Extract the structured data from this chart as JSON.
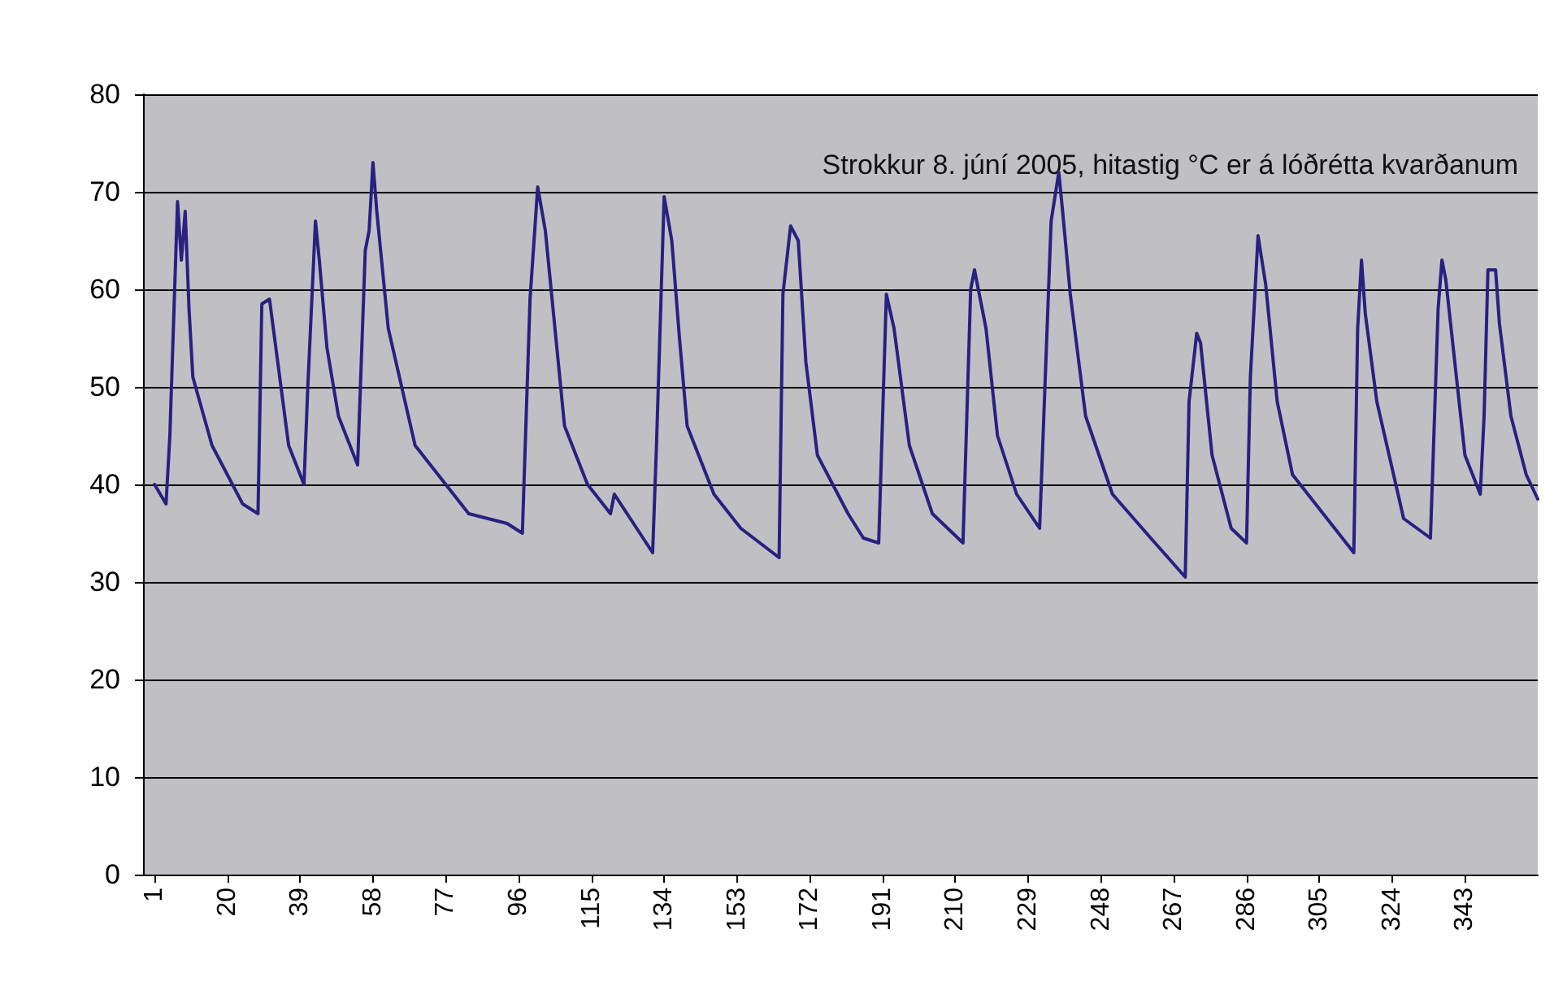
{
  "chart_data": {
    "type": "line",
    "annotations": [
      "Strokkur 8. júní 2005, hitastig °C er á lóðrétta kvarðanum"
    ],
    "x": [
      1,
      4,
      5,
      7,
      8,
      9,
      10,
      11,
      16,
      24,
      28,
      29,
      31,
      36,
      40,
      41,
      43,
      44,
      46,
      49,
      54,
      56,
      57,
      58,
      59,
      62,
      69,
      83,
      93,
      97,
      99,
      101,
      103,
      106,
      108,
      114,
      120,
      121,
      131,
      132,
      134,
      136,
      138,
      140,
      147,
      154,
      164,
      165,
      167,
      169,
      171,
      174,
      182,
      186,
      190,
      192,
      194,
      198,
      204,
      212,
      214,
      215,
      218,
      221,
      226,
      232,
      235,
      237,
      238,
      240,
      244,
      251,
      261,
      270,
      271,
      273,
      274,
      277,
      282,
      286,
      287,
      289,
      291,
      294,
      298,
      307,
      314,
      315,
      316,
      317,
      320,
      327,
      334,
      336,
      337,
      338,
      343,
      347,
      348,
      349,
      351,
      352,
      355,
      359,
      362
    ],
    "series": [
      {
        "color": "#2a2080",
        "values": [
          40,
          38,
          45,
          69,
          63,
          68,
          58,
          51,
          44,
          38,
          37,
          58.5,
          59,
          44,
          40,
          50,
          67,
          63,
          54,
          47,
          42,
          64,
          66,
          73,
          68,
          56,
          44,
          37,
          36,
          35,
          59,
          70.5,
          66,
          54,
          46,
          40,
          37,
          39,
          33,
          44,
          69.5,
          65,
          55,
          46,
          39,
          35.5,
          32.5,
          59.5,
          66.5,
          65,
          52.5,
          43,
          37,
          34.5,
          34,
          59.5,
          56,
          44,
          37,
          34,
          60,
          62,
          56,
          45,
          39,
          35.5,
          67,
          72,
          68,
          59.5,
          47,
          39,
          34.5,
          30.5,
          48.5,
          55.5,
          54.5,
          43,
          35.5,
          34,
          51,
          65.5,
          60.5,
          48.5,
          41,
          36.5,
          33,
          56,
          63,
          57.5,
          48.5,
          36.5,
          34.5,
          58,
          63,
          61,
          43,
          39,
          47,
          62,
          62,
          56.5,
          47,
          41,
          38.5
        ]
      }
    ],
    "ylim": [
      0,
      80
    ],
    "yticks": [
      0,
      10,
      20,
      30,
      40,
      50,
      60,
      70,
      80
    ],
    "xlim": [
      -2,
      362
    ],
    "xticks": [
      1,
      20,
      39,
      58,
      77,
      96,
      115,
      134,
      153,
      172,
      191,
      210,
      229,
      248,
      267,
      286,
      305,
      324,
      343
    ],
    "grid": "y",
    "marker": "none",
    "line_style": "solid"
  }
}
